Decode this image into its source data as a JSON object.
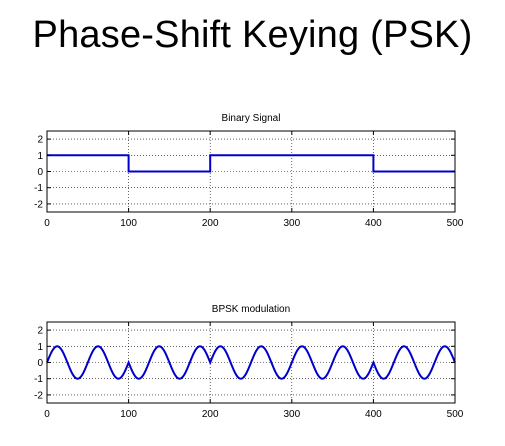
{
  "slide": {
    "title": "Phase-Shift Keying (PSK)"
  },
  "chart_data": [
    {
      "type": "line",
      "title": "Binary Signal",
      "xlabel": "",
      "ylabel": "",
      "xlim": [
        0,
        500
      ],
      "ylim": [
        -2.5,
        2.5
      ],
      "xticks": [
        0,
        100,
        200,
        300,
        400,
        500
      ],
      "yticks": [
        2,
        1,
        0,
        -1,
        -2
      ],
      "grid": true,
      "line_color": "#0000cc",
      "series": [
        {
          "x": [
            0,
            100,
            100,
            200,
            200,
            300,
            300,
            400,
            400,
            500
          ],
          "y": [
            1,
            1,
            0,
            0,
            1,
            1,
            1,
            1,
            0,
            0
          ]
        }
      ]
    },
    {
      "type": "line",
      "title": "BPSK modulation",
      "xlabel": "",
      "ylabel": "",
      "xlim": [
        0,
        500
      ],
      "ylim": [
        -2.5,
        2.5
      ],
      "xticks": [
        0,
        100,
        200,
        300,
        400,
        500
      ],
      "yticks": [
        2,
        1,
        0,
        -1,
        -2
      ],
      "grid": true,
      "line_color": "#0000cc",
      "carrier_period": 50,
      "amplitude": 1,
      "bits": [
        1,
        0,
        1,
        1,
        0
      ]
    }
  ]
}
